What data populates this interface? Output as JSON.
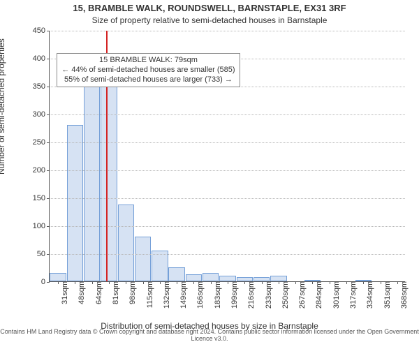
{
  "title": "15, BRAMBLE WALK, ROUNDSWELL, BARNSTAPLE, EX31 3RF",
  "subtitle": "Size of property relative to semi-detached houses in Barnstaple",
  "ylabel": "Number of semi-detached properties",
  "xlabel": "Distribution of semi-detached houses by size in Barnstaple",
  "copyright": "Contains HM Land Registry data © Crown copyright and database right 2024. Contains public sector information licensed under the Open Government Licence v3.0.",
  "chart": {
    "type": "histogram",
    "ylim": [
      0,
      450
    ],
    "ytick_step": 50,
    "bar_fill": "#d6e2f3",
    "bar_stroke": "#75a0d8",
    "grid_color": "#b7b7b7",
    "axis_color": "#5a5a5a",
    "reference_line_color": "#d42424",
    "background": "#ffffff",
    "font_size_axis": 11,
    "categories": [
      "31sqm",
      "48sqm",
      "64sqm",
      "81sqm",
      "98sqm",
      "115sqm",
      "132sqm",
      "149sqm",
      "166sqm",
      "183sqm",
      "199sqm",
      "216sqm",
      "233sqm",
      "250sqm",
      "267sqm",
      "284sqm",
      "301sqm",
      "317sqm",
      "334sqm",
      "351sqm",
      "368sqm"
    ],
    "values": [
      15,
      280,
      365,
      352,
      137,
      80,
      55,
      25,
      12,
      15,
      10,
      8,
      7,
      10,
      0,
      3,
      0,
      0,
      3,
      0,
      0
    ],
    "reference_index": 2.85,
    "annotation": {
      "line1": "15 BRAMBLE WALK: 79sqm",
      "line2": "← 44% of semi-detached houses are smaller (585)",
      "line3": "55% of semi-detached houses are larger (733) →",
      "top_value": 410
    }
  }
}
